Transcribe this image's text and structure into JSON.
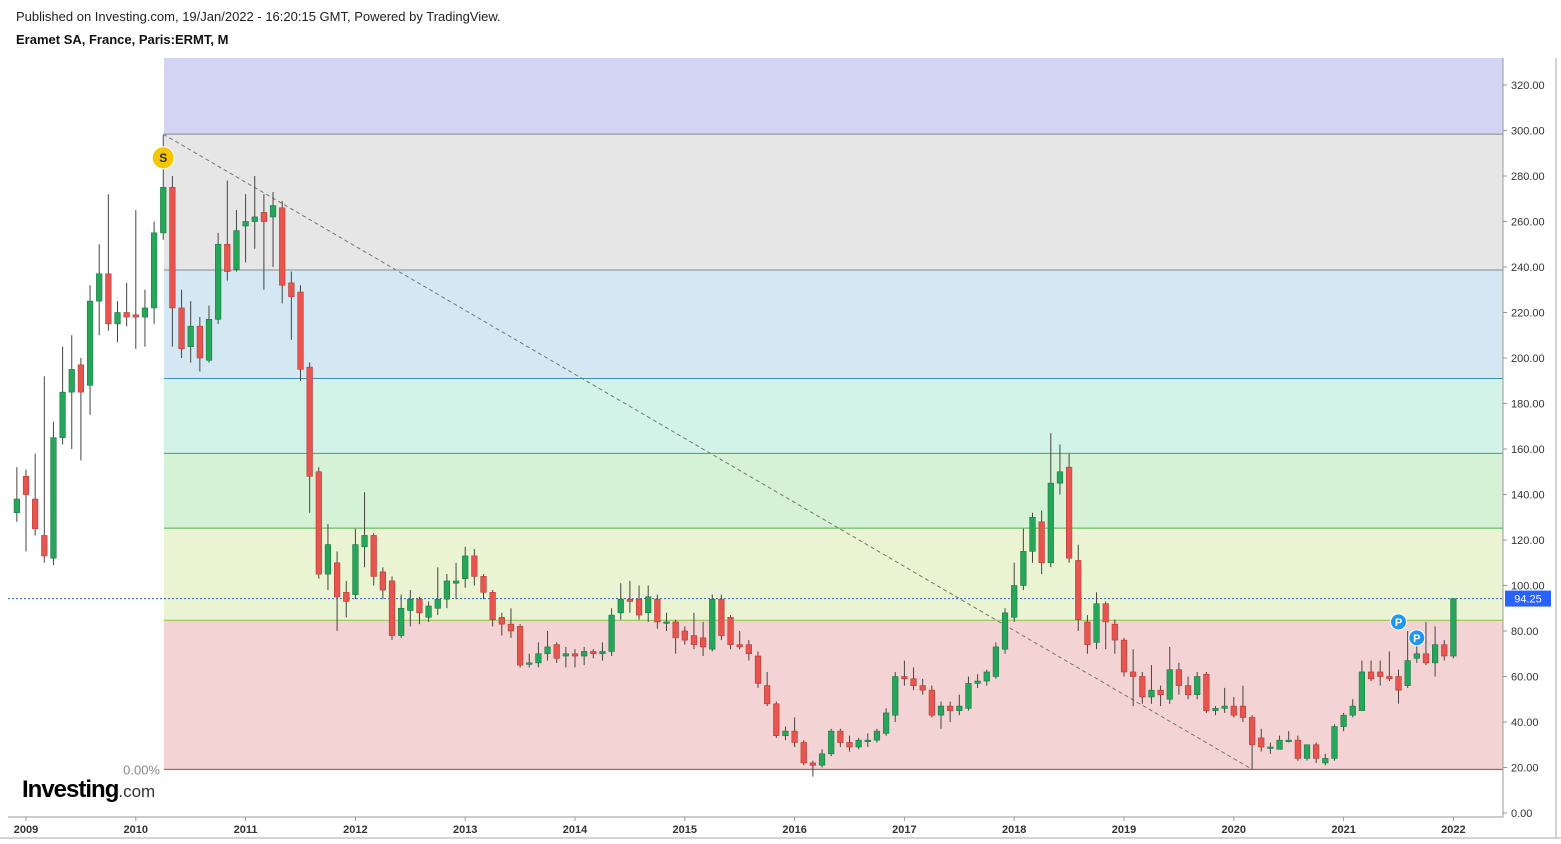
{
  "header": {
    "published": "Published on Investing.com, 19/Jan/2022 - 16:20:15 GMT, Powered by TradingView.",
    "symbol": "Eramet SA, France, Paris:ERMT, M"
  },
  "logo": {
    "main": "Investing",
    "suffix": ".com"
  },
  "colors": {
    "up": "#26a65b",
    "down": "#e8554e",
    "wick": "#444444",
    "price_line": "#2f5fd0",
    "price_badge": "#2962ff",
    "signal_s": "#f7c600",
    "signal_p": "#2196f3"
  },
  "chart_data": {
    "type": "candlestick",
    "interval": "monthly",
    "ylim": [
      0,
      330
    ],
    "y_ticks": [
      "320.00",
      "300.00",
      "280.00",
      "260.00",
      "240.00",
      "220.00",
      "200.00",
      "180.00",
      "160.00",
      "140.00",
      "120.00",
      "100.00",
      "80.00",
      "60.00",
      "40.00",
      "20.00",
      "0.00"
    ],
    "x_ticks": [
      "2009",
      "2010",
      "2011",
      "2012",
      "2013",
      "2014",
      "2015",
      "2016",
      "2017",
      "2018",
      "2019",
      "2020",
      "2021",
      "2022"
    ],
    "last_price_label": "94.25",
    "last_price": 94.25,
    "fib_zero_label": "0.00%",
    "fib_levels": [
      19.2,
      84.7,
      125.2,
      158.1,
      191.0,
      238.7,
      298.4
    ],
    "fib_zone_colors": [
      "#f3d3d3",
      "#eaf4d3",
      "#d6f2d6",
      "#d3f2e8",
      "#d3e8f3",
      "#e6e6e6",
      "#d3d3f3"
    ],
    "fib_line_colors": [
      "#c0392b",
      "#8bc34a",
      "#4caf50",
      "#26a69a",
      "#3d8fb5",
      "#888888",
      "#888888"
    ],
    "trend_line": {
      "from": [
        "2010-04",
        298.4
      ],
      "to": [
        "2020-03",
        19.2
      ]
    },
    "signals": [
      {
        "label": "S",
        "date": "2010-04",
        "price": 288
      },
      {
        "label": "P",
        "date": "2021-07",
        "price": 84
      },
      {
        "label": "P",
        "date": "2021-09",
        "price": 77
      }
    ],
    "candles": [
      {
        "d": "2008-12",
        "o": 132,
        "h": 152,
        "l": 128,
        "c": 138
      },
      {
        "d": "2009-01",
        "o": 148,
        "h": 151,
        "l": 115,
        "c": 140
      },
      {
        "d": "2009-02",
        "o": 138,
        "h": 158,
        "l": 122,
        "c": 125
      },
      {
        "d": "2009-03",
        "o": 122,
        "h": 192,
        "l": 110,
        "c": 113
      },
      {
        "d": "2009-04",
        "o": 112,
        "h": 172,
        "l": 109,
        "c": 165
      },
      {
        "d": "2009-05",
        "o": 165,
        "h": 205,
        "l": 162,
        "c": 185
      },
      {
        "d": "2009-06",
        "o": 185,
        "h": 210,
        "l": 160,
        "c": 195
      },
      {
        "d": "2009-07",
        "o": 197,
        "h": 200,
        "l": 155,
        "c": 185
      },
      {
        "d": "2009-08",
        "o": 188,
        "h": 232,
        "l": 175,
        "c": 225
      },
      {
        "d": "2009-09",
        "o": 225,
        "h": 250,
        "l": 210,
        "c": 237
      },
      {
        "d": "2009-10",
        "o": 237,
        "h": 272,
        "l": 212,
        "c": 215
      },
      {
        "d": "2009-11",
        "o": 215,
        "h": 225,
        "l": 207,
        "c": 220
      },
      {
        "d": "2009-12",
        "o": 220,
        "h": 233,
        "l": 214,
        "c": 218
      },
      {
        "d": "2010-01",
        "o": 219,
        "h": 265,
        "l": 204,
        "c": 218
      },
      {
        "d": "2010-02",
        "o": 218,
        "h": 230,
        "l": 205,
        "c": 222
      },
      {
        "d": "2010-03",
        "o": 222,
        "h": 260,
        "l": 215,
        "c": 255
      },
      {
        "d": "2010-04",
        "o": 255,
        "h": 298,
        "l": 252,
        "c": 275
      },
      {
        "d": "2010-05",
        "o": 275,
        "h": 280,
        "l": 205,
        "c": 222
      },
      {
        "d": "2010-06",
        "o": 222,
        "h": 230,
        "l": 200,
        "c": 204
      },
      {
        "d": "2010-07",
        "o": 205,
        "h": 225,
        "l": 198,
        "c": 214
      },
      {
        "d": "2010-08",
        "o": 214,
        "h": 218,
        "l": 194,
        "c": 200
      },
      {
        "d": "2010-09",
        "o": 199,
        "h": 223,
        "l": 198,
        "c": 217
      },
      {
        "d": "2010-10",
        "o": 217,
        "h": 255,
        "l": 215,
        "c": 250
      },
      {
        "d": "2010-11",
        "o": 250,
        "h": 278,
        "l": 234,
        "c": 238
      },
      {
        "d": "2010-12",
        "o": 239,
        "h": 265,
        "l": 238,
        "c": 256
      },
      {
        "d": "2011-01",
        "o": 258,
        "h": 272,
        "l": 242,
        "c": 260
      },
      {
        "d": "2011-02",
        "o": 260,
        "h": 280,
        "l": 248,
        "c": 262
      },
      {
        "d": "2011-03",
        "o": 264,
        "h": 272,
        "l": 230,
        "c": 260
      },
      {
        "d": "2011-04",
        "o": 262,
        "h": 273,
        "l": 240,
        "c": 267
      },
      {
        "d": "2011-05",
        "o": 266,
        "h": 269,
        "l": 224,
        "c": 232
      },
      {
        "d": "2011-06",
        "o": 233,
        "h": 238,
        "l": 208,
        "c": 227
      },
      {
        "d": "2011-07",
        "o": 229,
        "h": 232,
        "l": 190,
        "c": 195
      },
      {
        "d": "2011-08",
        "o": 196,
        "h": 198,
        "l": 132,
        "c": 148
      },
      {
        "d": "2011-09",
        "o": 150,
        "h": 152,
        "l": 103,
        "c": 105
      },
      {
        "d": "2011-10",
        "o": 105,
        "h": 127,
        "l": 98,
        "c": 118
      },
      {
        "d": "2011-11",
        "o": 110,
        "h": 115,
        "l": 80,
        "c": 95
      },
      {
        "d": "2011-12",
        "o": 97,
        "h": 102,
        "l": 86,
        "c": 93
      },
      {
        "d": "2012-01",
        "o": 96,
        "h": 125,
        "l": 94,
        "c": 118
      },
      {
        "d": "2012-02",
        "o": 117,
        "h": 141,
        "l": 108,
        "c": 122
      },
      {
        "d": "2012-03",
        "o": 122,
        "h": 123,
        "l": 100,
        "c": 104
      },
      {
        "d": "2012-04",
        "o": 106,
        "h": 108,
        "l": 94,
        "c": 98
      },
      {
        "d": "2012-05",
        "o": 102,
        "h": 104,
        "l": 76,
        "c": 78
      },
      {
        "d": "2012-06",
        "o": 78,
        "h": 96,
        "l": 77,
        "c": 90
      },
      {
        "d": "2012-07",
        "o": 89,
        "h": 98,
        "l": 82,
        "c": 94
      },
      {
        "d": "2012-08",
        "o": 94,
        "h": 95,
        "l": 83,
        "c": 88
      },
      {
        "d": "2012-09",
        "o": 86,
        "h": 93,
        "l": 84,
        "c": 91
      },
      {
        "d": "2012-10",
        "o": 90,
        "h": 108,
        "l": 87,
        "c": 94
      },
      {
        "d": "2012-11",
        "o": 94,
        "h": 105,
        "l": 90,
        "c": 102
      },
      {
        "d": "2012-12",
        "o": 101,
        "h": 110,
        "l": 94,
        "c": 102
      },
      {
        "d": "2013-01",
        "o": 103,
        "h": 117,
        "l": 99,
        "c": 113
      },
      {
        "d": "2013-02",
        "o": 113,
        "h": 116,
        "l": 100,
        "c": 104
      },
      {
        "d": "2013-03",
        "o": 104,
        "h": 105,
        "l": 94,
        "c": 97
      },
      {
        "d": "2013-04",
        "o": 97,
        "h": 98,
        "l": 82,
        "c": 85
      },
      {
        "d": "2013-05",
        "o": 86,
        "h": 88,
        "l": 78,
        "c": 83
      },
      {
        "d": "2013-06",
        "o": 83,
        "h": 90,
        "l": 77,
        "c": 80
      },
      {
        "d": "2013-07",
        "o": 82,
        "h": 83,
        "l": 64,
        "c": 65
      },
      {
        "d": "2013-08",
        "o": 66,
        "h": 70,
        "l": 64,
        "c": 66
      },
      {
        "d": "2013-09",
        "o": 66,
        "h": 75,
        "l": 64,
        "c": 70
      },
      {
        "d": "2013-10",
        "o": 70,
        "h": 80,
        "l": 67,
        "c": 73
      },
      {
        "d": "2013-11",
        "o": 74,
        "h": 75,
        "l": 66,
        "c": 68
      },
      {
        "d": "2013-12",
        "o": 69,
        "h": 73,
        "l": 64,
        "c": 70
      },
      {
        "d": "2014-01",
        "o": 70,
        "h": 72,
        "l": 64,
        "c": 69
      },
      {
        "d": "2014-02",
        "o": 69,
        "h": 73,
        "l": 65,
        "c": 71
      },
      {
        "d": "2014-03",
        "o": 71,
        "h": 72,
        "l": 68,
        "c": 70
      },
      {
        "d": "2014-04",
        "o": 70,
        "h": 75,
        "l": 67,
        "c": 71
      },
      {
        "d": "2014-05",
        "o": 71,
        "h": 90,
        "l": 69,
        "c": 87
      },
      {
        "d": "2014-06",
        "o": 88,
        "h": 101,
        "l": 85,
        "c": 94
      },
      {
        "d": "2014-07",
        "o": 94,
        "h": 102,
        "l": 88,
        "c": 93
      },
      {
        "d": "2014-08",
        "o": 94,
        "h": 100,
        "l": 85,
        "c": 87
      },
      {
        "d": "2014-09",
        "o": 88,
        "h": 100,
        "l": 84,
        "c": 95
      },
      {
        "d": "2014-10",
        "o": 94,
        "h": 96,
        "l": 81,
        "c": 84
      },
      {
        "d": "2014-11",
        "o": 84,
        "h": 88,
        "l": 80,
        "c": 84
      },
      {
        "d": "2014-12",
        "o": 84,
        "h": 85,
        "l": 70,
        "c": 77
      },
      {
        "d": "2015-01",
        "o": 80,
        "h": 82,
        "l": 74,
        "c": 76
      },
      {
        "d": "2015-02",
        "o": 78,
        "h": 88,
        "l": 72,
        "c": 74
      },
      {
        "d": "2015-03",
        "o": 77,
        "h": 84,
        "l": 69,
        "c": 73
      },
      {
        "d": "2015-04",
        "o": 72,
        "h": 96,
        "l": 71,
        "c": 94
      },
      {
        "d": "2015-05",
        "o": 94,
        "h": 96,
        "l": 76,
        "c": 78
      },
      {
        "d": "2015-06",
        "o": 86,
        "h": 87,
        "l": 72,
        "c": 74
      },
      {
        "d": "2015-07",
        "o": 74,
        "h": 80,
        "l": 72,
        "c": 73
      },
      {
        "d": "2015-08",
        "o": 74,
        "h": 76,
        "l": 67,
        "c": 70
      },
      {
        "d": "2015-09",
        "o": 69,
        "h": 71,
        "l": 55,
        "c": 57
      },
      {
        "d": "2015-10",
        "o": 56,
        "h": 62,
        "l": 47,
        "c": 48
      },
      {
        "d": "2015-11",
        "o": 48,
        "h": 49,
        "l": 33,
        "c": 34
      },
      {
        "d": "2015-12",
        "o": 34,
        "h": 38,
        "l": 32,
        "c": 36
      },
      {
        "d": "2016-01",
        "o": 36,
        "h": 42,
        "l": 29,
        "c": 31
      },
      {
        "d": "2016-02",
        "o": 31,
        "h": 32,
        "l": 21,
        "c": 22
      },
      {
        "d": "2016-03",
        "o": 22,
        "h": 23,
        "l": 16,
        "c": 21
      },
      {
        "d": "2016-04",
        "o": 21,
        "h": 28,
        "l": 20,
        "c": 26
      },
      {
        "d": "2016-05",
        "o": 26,
        "h": 37,
        "l": 25,
        "c": 36
      },
      {
        "d": "2016-06",
        "o": 36,
        "h": 37,
        "l": 29,
        "c": 31
      },
      {
        "d": "2016-07",
        "o": 31,
        "h": 34,
        "l": 27,
        "c": 29
      },
      {
        "d": "2016-08",
        "o": 29,
        "h": 33,
        "l": 28,
        "c": 32
      },
      {
        "d": "2016-09",
        "o": 32,
        "h": 35,
        "l": 29,
        "c": 32
      },
      {
        "d": "2016-10",
        "o": 32,
        "h": 37,
        "l": 31,
        "c": 36
      },
      {
        "d": "2016-11",
        "o": 35,
        "h": 46,
        "l": 34,
        "c": 44
      },
      {
        "d": "2016-12",
        "o": 43,
        "h": 62,
        "l": 40,
        "c": 60
      },
      {
        "d": "2017-01",
        "o": 60,
        "h": 67,
        "l": 56,
        "c": 59
      },
      {
        "d": "2017-02",
        "o": 59,
        "h": 64,
        "l": 54,
        "c": 56
      },
      {
        "d": "2017-03",
        "o": 56,
        "h": 59,
        "l": 52,
        "c": 54
      },
      {
        "d": "2017-04",
        "o": 54,
        "h": 56,
        "l": 42,
        "c": 43
      },
      {
        "d": "2017-05",
        "o": 43,
        "h": 49,
        "l": 37,
        "c": 47
      },
      {
        "d": "2017-06",
        "o": 47,
        "h": 49,
        "l": 40,
        "c": 45
      },
      {
        "d": "2017-07",
        "o": 45,
        "h": 52,
        "l": 43,
        "c": 47
      },
      {
        "d": "2017-08",
        "o": 46,
        "h": 60,
        "l": 45,
        "c": 57
      },
      {
        "d": "2017-09",
        "o": 57,
        "h": 61,
        "l": 55,
        "c": 58
      },
      {
        "d": "2017-10",
        "o": 58,
        "h": 63,
        "l": 56,
        "c": 62
      },
      {
        "d": "2017-11",
        "o": 60,
        "h": 75,
        "l": 59,
        "c": 73
      },
      {
        "d": "2017-12",
        "o": 72,
        "h": 90,
        "l": 70,
        "c": 88
      },
      {
        "d": "2018-01",
        "o": 86,
        "h": 110,
        "l": 84,
        "c": 100
      },
      {
        "d": "2018-02",
        "o": 100,
        "h": 125,
        "l": 98,
        "c": 115
      },
      {
        "d": "2018-03",
        "o": 115,
        "h": 132,
        "l": 110,
        "c": 130
      },
      {
        "d": "2018-04",
        "o": 128,
        "h": 133,
        "l": 105,
        "c": 110
      },
      {
        "d": "2018-05",
        "o": 110,
        "h": 167,
        "l": 108,
        "c": 145
      },
      {
        "d": "2018-06",
        "o": 145,
        "h": 162,
        "l": 140,
        "c": 150
      },
      {
        "d": "2018-07",
        "o": 152,
        "h": 158,
        "l": 110,
        "c": 112
      },
      {
        "d": "2018-08",
        "o": 111,
        "h": 118,
        "l": 80,
        "c": 85
      },
      {
        "d": "2018-09",
        "o": 84,
        "h": 87,
        "l": 70,
        "c": 74
      },
      {
        "d": "2018-10",
        "o": 75,
        "h": 97,
        "l": 72,
        "c": 92
      },
      {
        "d": "2018-11",
        "o": 92,
        "h": 93,
        "l": 72,
        "c": 84
      },
      {
        "d": "2018-12",
        "o": 83,
        "h": 85,
        "l": 70,
        "c": 76
      },
      {
        "d": "2019-01",
        "o": 76,
        "h": 77,
        "l": 60,
        "c": 62
      },
      {
        "d": "2019-02",
        "o": 62,
        "h": 72,
        "l": 47,
        "c": 60
      },
      {
        "d": "2019-03",
        "o": 60,
        "h": 62,
        "l": 48,
        "c": 51
      },
      {
        "d": "2019-04",
        "o": 51,
        "h": 65,
        "l": 48,
        "c": 54
      },
      {
        "d": "2019-05",
        "o": 54,
        "h": 56,
        "l": 47,
        "c": 52
      },
      {
        "d": "2019-06",
        "o": 50,
        "h": 73,
        "l": 48,
        "c": 63
      },
      {
        "d": "2019-07",
        "o": 63,
        "h": 66,
        "l": 52,
        "c": 56
      },
      {
        "d": "2019-08",
        "o": 56,
        "h": 60,
        "l": 50,
        "c": 52
      },
      {
        "d": "2019-09",
        "o": 52,
        "h": 62,
        "l": 50,
        "c": 60
      },
      {
        "d": "2019-10",
        "o": 61,
        "h": 62,
        "l": 44,
        "c": 45
      },
      {
        "d": "2019-11",
        "o": 45,
        "h": 47,
        "l": 43,
        "c": 46
      },
      {
        "d": "2019-12",
        "o": 46,
        "h": 55,
        "l": 44,
        "c": 47
      },
      {
        "d": "2020-01",
        "o": 47,
        "h": 51,
        "l": 42,
        "c": 43
      },
      {
        "d": "2020-02",
        "o": 47,
        "h": 56,
        "l": 40,
        "c": 42
      },
      {
        "d": "2020-03",
        "o": 42,
        "h": 43,
        "l": 19,
        "c": 30
      },
      {
        "d": "2020-04",
        "o": 33,
        "h": 37,
        "l": 27,
        "c": 29
      },
      {
        "d": "2020-05",
        "o": 29,
        "h": 31,
        "l": 26,
        "c": 29
      },
      {
        "d": "2020-06",
        "o": 28,
        "h": 34,
        "l": 28,
        "c": 32
      },
      {
        "d": "2020-07",
        "o": 32,
        "h": 36,
        "l": 31,
        "c": 32
      },
      {
        "d": "2020-08",
        "o": 32,
        "h": 34,
        "l": 23,
        "c": 24
      },
      {
        "d": "2020-09",
        "o": 24,
        "h": 30,
        "l": 23,
        "c": 30
      },
      {
        "d": "2020-10",
        "o": 30,
        "h": 31,
        "l": 22,
        "c": 24
      },
      {
        "d": "2020-11",
        "o": 22,
        "h": 26,
        "l": 21,
        "c": 24
      },
      {
        "d": "2020-12",
        "o": 24,
        "h": 39,
        "l": 23,
        "c": 38
      },
      {
        "d": "2021-01",
        "o": 38,
        "h": 44,
        "l": 36,
        "c": 43
      },
      {
        "d": "2021-02",
        "o": 43,
        "h": 50,
        "l": 42,
        "c": 47
      },
      {
        "d": "2021-03",
        "o": 45,
        "h": 67,
        "l": 45,
        "c": 62
      },
      {
        "d": "2021-04",
        "o": 62,
        "h": 67,
        "l": 58,
        "c": 59
      },
      {
        "d": "2021-05",
        "o": 62,
        "h": 67,
        "l": 56,
        "c": 60
      },
      {
        "d": "2021-06",
        "o": 60,
        "h": 71,
        "l": 58,
        "c": 59
      },
      {
        "d": "2021-07",
        "o": 60,
        "h": 63,
        "l": 48,
        "c": 54
      },
      {
        "d": "2021-08",
        "o": 56,
        "h": 80,
        "l": 55,
        "c": 67
      },
      {
        "d": "2021-09",
        "o": 68,
        "h": 77,
        "l": 66,
        "c": 70
      },
      {
        "d": "2021-10",
        "o": 70,
        "h": 84,
        "l": 65,
        "c": 66
      },
      {
        "d": "2021-11",
        "o": 66,
        "h": 82,
        "l": 60,
        "c": 74
      },
      {
        "d": "2021-12",
        "o": 74,
        "h": 76,
        "l": 67,
        "c": 69
      },
      {
        "d": "2022-01",
        "o": 69,
        "h": 94,
        "l": 68,
        "c": 94.25
      }
    ]
  }
}
